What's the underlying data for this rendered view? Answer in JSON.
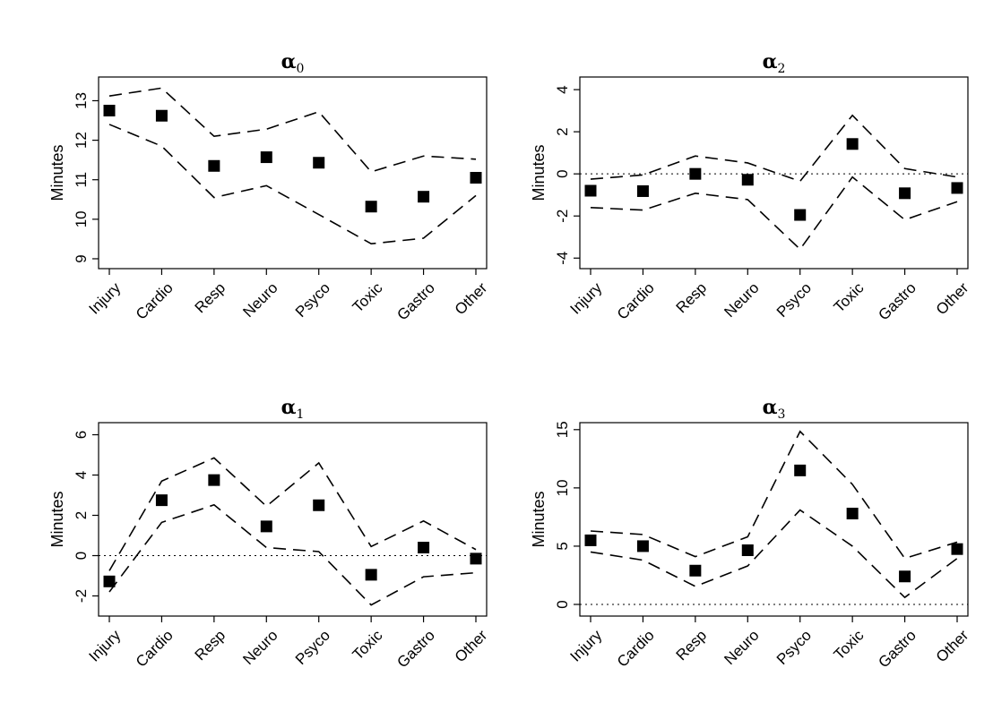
{
  "chart_data": [
    {
      "type": "scatter",
      "title": "α0",
      "title_base": "α",
      "title_sub": "0",
      "ylabel": "Minutes",
      "categories": [
        "Injury",
        "Cardio",
        "Resp",
        "Neuro",
        "Psyco",
        "Toxic",
        "Gastro",
        "Other"
      ],
      "yticks": [
        9,
        10,
        11,
        12,
        13
      ],
      "ylim": [
        8.75,
        13.6
      ],
      "zero_line": false,
      "series": [
        {
          "role": "estimate",
          "values": [
            12.75,
            12.62,
            11.35,
            11.57,
            11.43,
            10.32,
            10.57,
            11.05
          ]
        },
        {
          "role": "upper",
          "values": [
            13.12,
            13.32,
            12.1,
            12.28,
            12.72,
            11.2,
            11.6,
            11.52
          ]
        },
        {
          "role": "lower",
          "values": [
            12.4,
            11.85,
            10.55,
            10.85,
            10.12,
            9.38,
            9.52,
            10.6
          ]
        }
      ]
    },
    {
      "type": "scatter",
      "title": "α2",
      "title_base": "α",
      "title_sub": "2",
      "ylabel": "Minutes",
      "categories": [
        "Injury",
        "Cardio",
        "Resp",
        "Neuro",
        "Psyco",
        "Toxic",
        "Gastro",
        "Other"
      ],
      "yticks": [
        -4,
        -2,
        0,
        2,
        4
      ],
      "ylim": [
        -4.5,
        4.6
      ],
      "zero_line": true,
      "series": [
        {
          "role": "estimate",
          "values": [
            -0.8,
            -0.82,
            0.0,
            -0.28,
            -1.95,
            1.42,
            -0.92,
            -0.67
          ]
        },
        {
          "role": "upper",
          "values": [
            -0.25,
            -0.05,
            0.85,
            0.52,
            -0.35,
            2.78,
            0.25,
            -0.15
          ]
        },
        {
          "role": "lower",
          "values": [
            -1.6,
            -1.72,
            -0.92,
            -1.22,
            -3.58,
            -0.15,
            -2.18,
            -1.32
          ]
        }
      ]
    },
    {
      "type": "scatter",
      "title": "α1",
      "title_base": "α",
      "title_sub": "1",
      "ylabel": "Minutes",
      "categories": [
        "Injury",
        "Cardio",
        "Resp",
        "Neuro",
        "Psyco",
        "Toxic",
        "Gastro",
        "Other"
      ],
      "yticks": [
        -2,
        0,
        2,
        4,
        6
      ],
      "ylim": [
        -3.0,
        6.6
      ],
      "zero_line": true,
      "series": [
        {
          "role": "estimate",
          "values": [
            -1.28,
            2.75,
            3.75,
            1.45,
            2.5,
            -0.95,
            0.4,
            -0.15
          ]
        },
        {
          "role": "upper",
          "values": [
            -0.75,
            3.7,
            4.85,
            2.45,
            4.6,
            0.45,
            1.72,
            0.3
          ]
        },
        {
          "role": "lower",
          "values": [
            -1.8,
            1.65,
            2.52,
            0.4,
            0.2,
            -2.45,
            -1.05,
            -0.85
          ]
        }
      ]
    },
    {
      "type": "scatter",
      "title": "α3",
      "title_base": "α",
      "title_sub": "3",
      "ylabel": "Minutes",
      "categories": [
        "Injury",
        "Cardio",
        "Resp",
        "Neuro",
        "Psyco",
        "Toxic",
        "Gastro",
        "Other"
      ],
      "yticks": [
        0,
        5,
        10,
        15
      ],
      "ylim": [
        -1.0,
        15.6
      ],
      "zero_line": true,
      "series": [
        {
          "role": "estimate",
          "values": [
            5.5,
            5.0,
            2.9,
            4.65,
            11.5,
            7.8,
            2.4,
            4.75
          ]
        },
        {
          "role": "upper",
          "values": [
            6.3,
            6.0,
            4.1,
            5.8,
            14.85,
            10.3,
            3.95,
            5.35
          ]
        },
        {
          "role": "lower",
          "values": [
            4.5,
            3.8,
            1.55,
            3.3,
            8.1,
            5.0,
            0.6,
            3.95
          ]
        }
      ]
    }
  ]
}
